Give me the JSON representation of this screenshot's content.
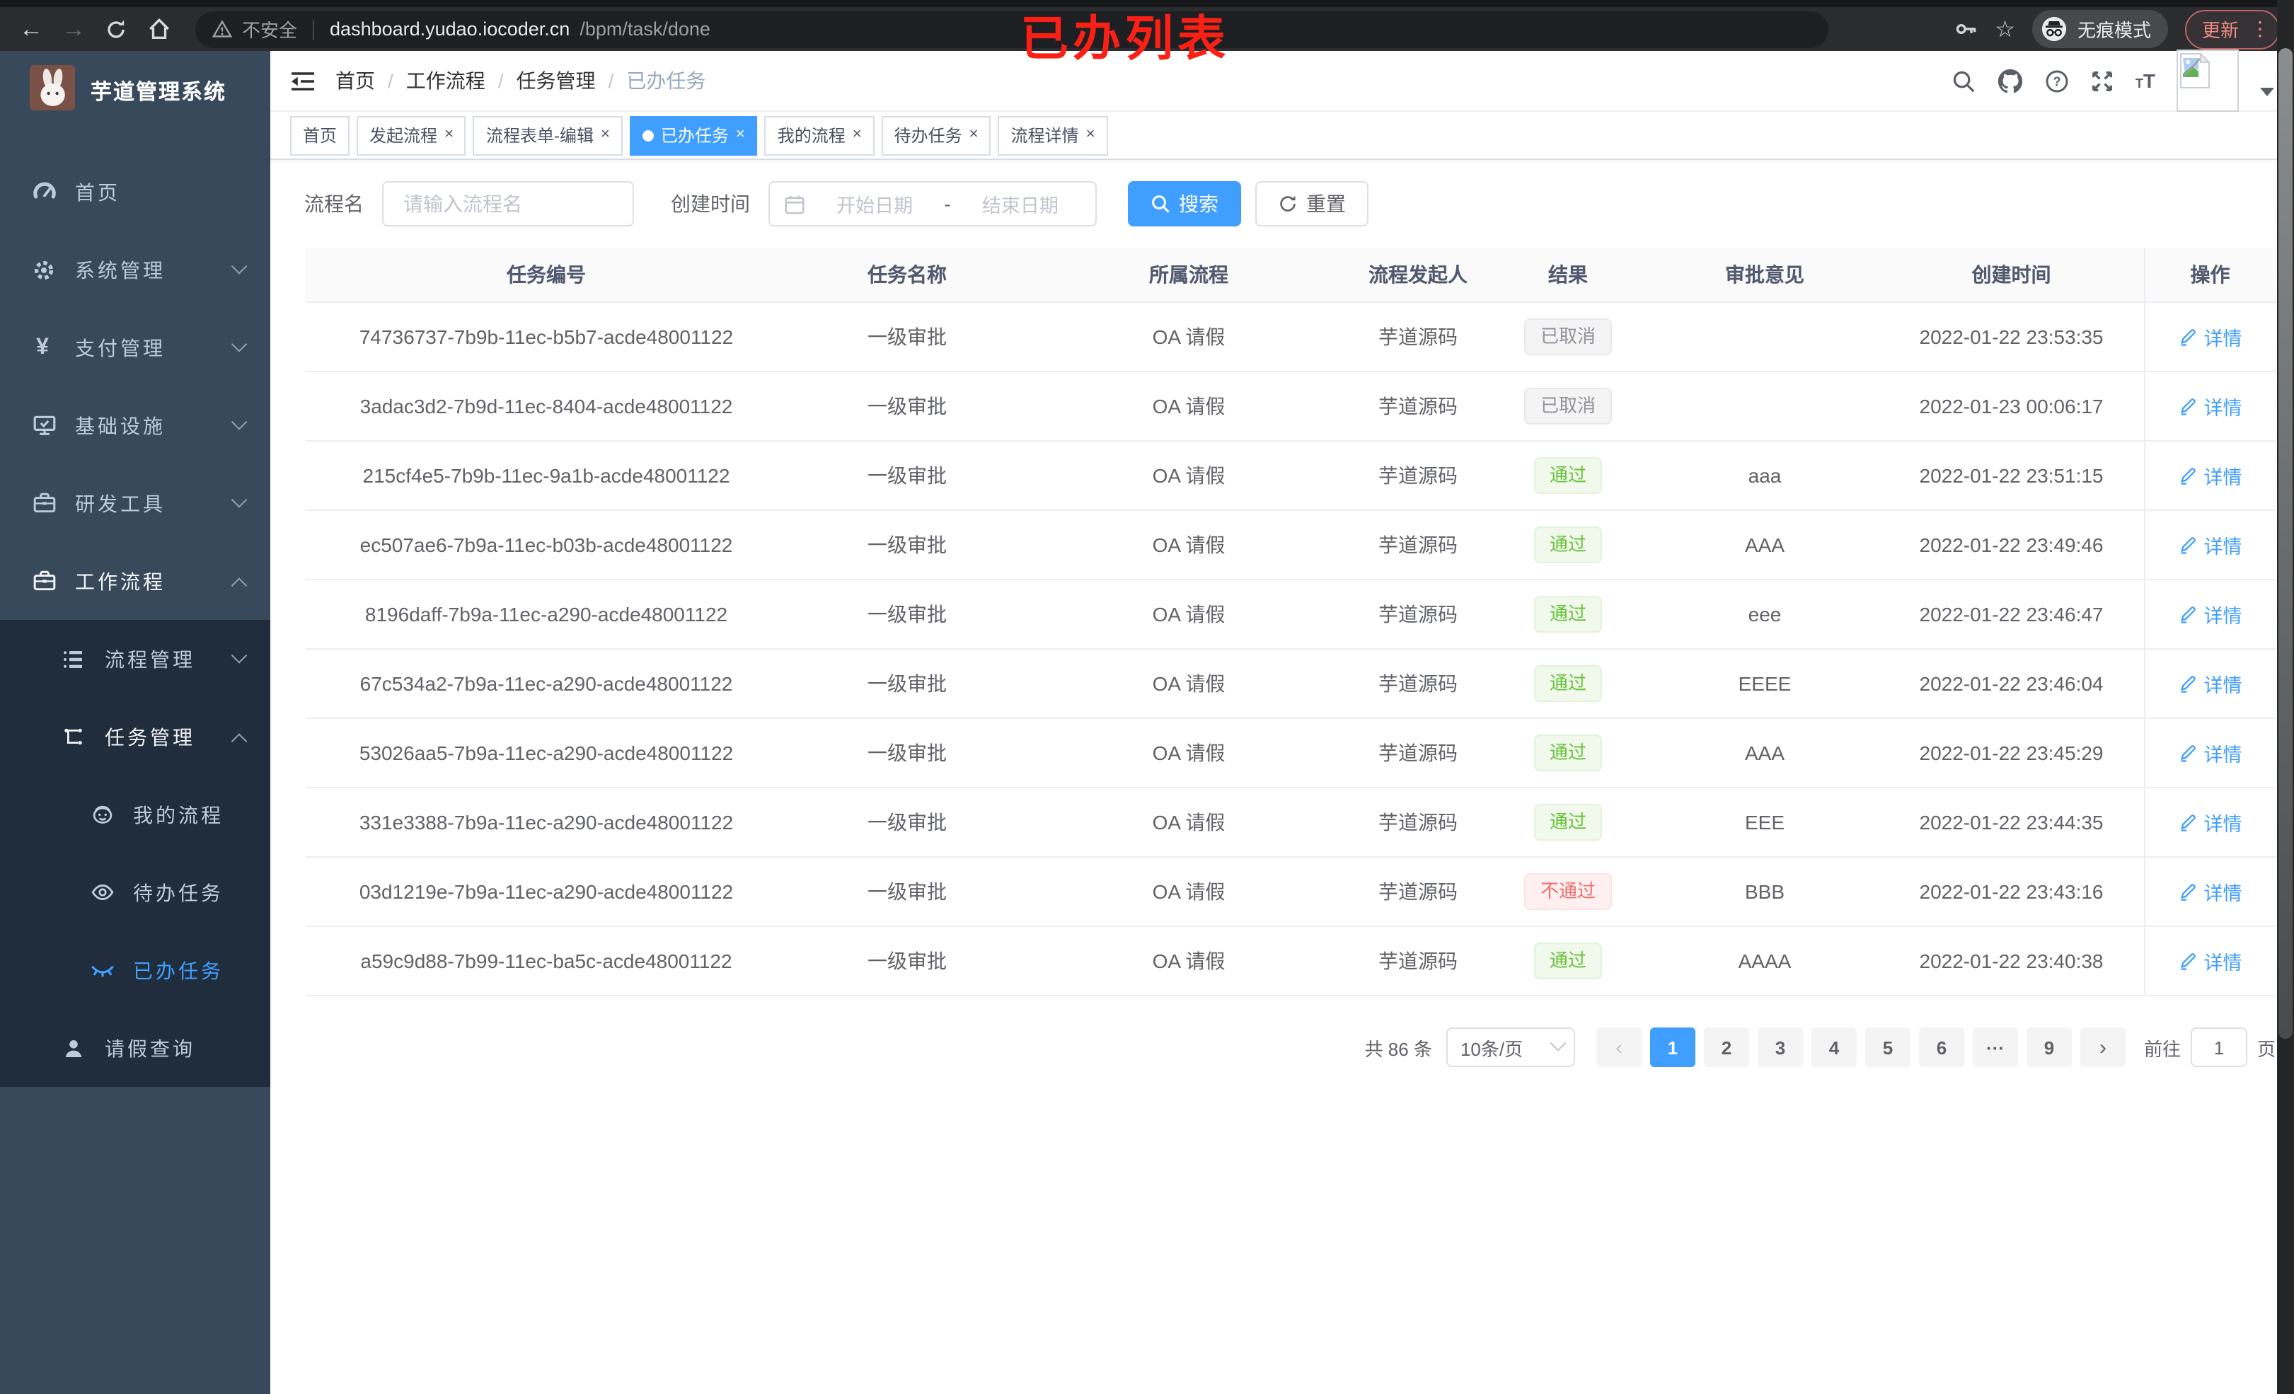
{
  "browser": {
    "security_label": "不安全",
    "url_host": "dashboard.yudao.iocoder.cn",
    "url_path": "/bpm/task/done",
    "incognito_label": "无痕模式",
    "update_label": "更新"
  },
  "annotation": {
    "text": "已办列表",
    "color": "#fb2015"
  },
  "sidebar": {
    "logo_title": "芋道管理系统",
    "items": [
      {
        "label": "首页",
        "icon": "dashboard-icon",
        "level": 1
      },
      {
        "label": "系统管理",
        "icon": "gear-icon",
        "level": 1,
        "chevron": "down"
      },
      {
        "label": "支付管理",
        "icon": "yen-icon",
        "level": 1,
        "chevron": "down"
      },
      {
        "label": "基础设施",
        "icon": "monitor-icon",
        "level": 1,
        "chevron": "down"
      },
      {
        "label": "研发工具",
        "icon": "toolbox-icon",
        "level": 1,
        "chevron": "down"
      },
      {
        "label": "工作流程",
        "icon": "briefcase-icon",
        "level": 1,
        "chevron": "up",
        "open": true
      },
      {
        "label": "流程管理",
        "icon": "list-tree-icon",
        "level": 2,
        "chevron": "down",
        "submenu": true
      },
      {
        "label": "任务管理",
        "icon": "flow-icon",
        "level": 2,
        "chevron": "up",
        "submenu": true,
        "open": true
      },
      {
        "label": "我的流程",
        "icon": "robot-icon",
        "level": 3,
        "submenu": true
      },
      {
        "label": "待办任务",
        "icon": "eye-icon",
        "level": 3,
        "submenu": true
      },
      {
        "label": "已办任务",
        "icon": "eye-closed-icon",
        "level": 3,
        "submenu": true,
        "active": true
      },
      {
        "label": "请假查询",
        "icon": "user-icon",
        "level": 2,
        "submenu": true
      }
    ]
  },
  "header": {
    "breadcrumb": [
      "首页",
      "工作流程",
      "任务管理",
      "已办任务"
    ],
    "icons": [
      "search-icon",
      "github-icon",
      "question-icon",
      "fullscreen-icon",
      "text-size-icon"
    ]
  },
  "tabs": [
    {
      "label": "首页",
      "closable": false,
      "active": false
    },
    {
      "label": "发起流程",
      "closable": true,
      "active": false
    },
    {
      "label": "流程表单-编辑",
      "closable": true,
      "active": false
    },
    {
      "label": "已办任务",
      "closable": true,
      "active": true
    },
    {
      "label": "我的流程",
      "closable": true,
      "active": false
    },
    {
      "label": "待办任务",
      "closable": true,
      "active": false
    },
    {
      "label": "流程详情",
      "closable": true,
      "active": false
    }
  ],
  "filters": {
    "name_label": "流程名",
    "name_placeholder": "请输入流程名",
    "time_label": "创建时间",
    "start_placeholder": "开始日期",
    "separator": "-",
    "end_placeholder": "结束日期",
    "search_label": "搜索",
    "reset_label": "重置"
  },
  "table": {
    "columns": [
      "任务编号",
      "任务名称",
      "所属流程",
      "流程发起人",
      "结果",
      "审批意见",
      "创建时间",
      "操作"
    ],
    "detail_label": "详情",
    "rows": [
      {
        "id": "74736737-7b9b-11ec-b5b7-acde48001122",
        "name": "一级审批",
        "process": "OA 请假",
        "starter": "芋道源码",
        "result": "已取消",
        "result_type": "info",
        "opinion": "",
        "created": "2022-01-22 23:53:35"
      },
      {
        "id": "3adac3d2-7b9d-11ec-8404-acde48001122",
        "name": "一级审批",
        "process": "OA 请假",
        "starter": "芋道源码",
        "result": "已取消",
        "result_type": "info",
        "opinion": "",
        "created": "2022-01-23 00:06:17"
      },
      {
        "id": "215cf4e5-7b9b-11ec-9a1b-acde48001122",
        "name": "一级审批",
        "process": "OA 请假",
        "starter": "芋道源码",
        "result": "通过",
        "result_type": "success",
        "opinion": "aaa",
        "created": "2022-01-22 23:51:15"
      },
      {
        "id": "ec507ae6-7b9a-11ec-b03b-acde48001122",
        "name": "一级审批",
        "process": "OA 请假",
        "starter": "芋道源码",
        "result": "通过",
        "result_type": "success",
        "opinion": "AAA",
        "created": "2022-01-22 23:49:46"
      },
      {
        "id": "8196daff-7b9a-11ec-a290-acde48001122",
        "name": "一级审批",
        "process": "OA 请假",
        "starter": "芋道源码",
        "result": "通过",
        "result_type": "success",
        "opinion": "eee",
        "created": "2022-01-22 23:46:47"
      },
      {
        "id": "67c534a2-7b9a-11ec-a290-acde48001122",
        "name": "一级审批",
        "process": "OA 请假",
        "starter": "芋道源码",
        "result": "通过",
        "result_type": "success",
        "opinion": "EEEE",
        "created": "2022-01-22 23:46:04"
      },
      {
        "id": "53026aa5-7b9a-11ec-a290-acde48001122",
        "name": "一级审批",
        "process": "OA 请假",
        "starter": "芋道源码",
        "result": "通过",
        "result_type": "success",
        "opinion": "AAA",
        "created": "2022-01-22 23:45:29"
      },
      {
        "id": "331e3388-7b9a-11ec-a290-acde48001122",
        "name": "一级审批",
        "process": "OA 请假",
        "starter": "芋道源码",
        "result": "通过",
        "result_type": "success",
        "opinion": "EEE",
        "created": "2022-01-22 23:44:35"
      },
      {
        "id": "03d1219e-7b9a-11ec-a290-acde48001122",
        "name": "一级审批",
        "process": "OA 请假",
        "starter": "芋道源码",
        "result": "不通过",
        "result_type": "danger",
        "opinion": "BBB",
        "created": "2022-01-22 23:43:16"
      },
      {
        "id": "a59c9d88-7b99-11ec-ba5c-acde48001122",
        "name": "一级审批",
        "process": "OA 请假",
        "starter": "芋道源码",
        "result": "通过",
        "result_type": "success",
        "opinion": "AAAA",
        "created": "2022-01-22 23:40:38"
      }
    ]
  },
  "pagination": {
    "total_label": "共 86 条",
    "page_size_label": "10条/页",
    "pages": [
      "1",
      "2",
      "3",
      "4",
      "5",
      "6",
      "···",
      "9"
    ],
    "active_page": "1",
    "prev_label": "‹",
    "next_label": "›",
    "goto_label": "前往",
    "goto_value": "1",
    "page_unit": "页"
  },
  "colors": {
    "accent": "#409eff",
    "success": "#67c23a",
    "danger": "#f56c6c",
    "info": "#909399",
    "sidebar": "#37495b",
    "submenu": "#1f2d3d"
  }
}
